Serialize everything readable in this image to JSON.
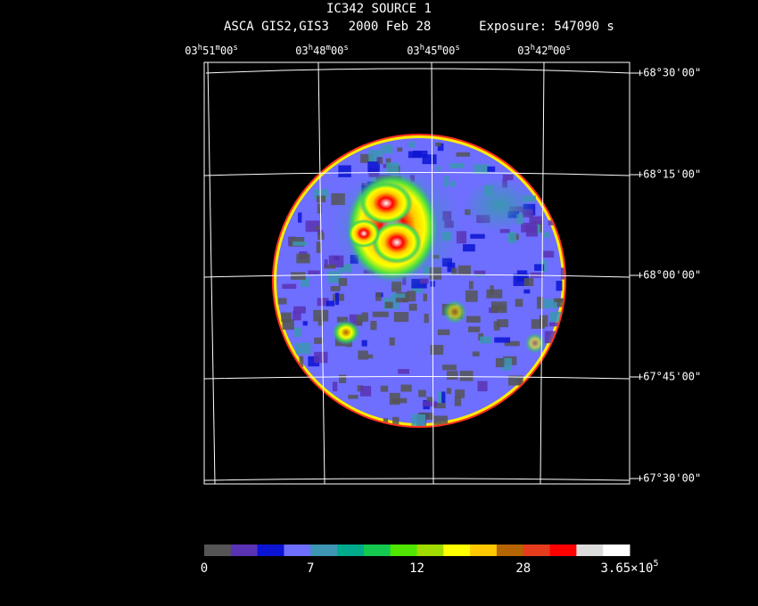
{
  "title": "IC342 SOURCE 1",
  "instrument": "ASCA GIS2,GIS3",
  "date": "2000 Feb 28",
  "exposure": "Exposure: 547090 s",
  "ra_labels": [
    [
      "03",
      "h",
      "51",
      "m",
      "00",
      "s"
    ],
    [
      "03",
      "h",
      "48",
      "m",
      "00",
      "s"
    ],
    [
      "03",
      "h",
      "45",
      "m",
      "00",
      "s"
    ],
    [
      "03",
      "h",
      "42",
      "m",
      "00",
      "s"
    ]
  ],
  "dec_labels": [
    "+68°30'00\"",
    "+68°15'00\"",
    "+68°00'00\"",
    "+67°45'00\"",
    "+67°30'00\""
  ],
  "colorbar": {
    "colors": [
      "#555555",
      "#5a32b4",
      "#0a14d2",
      "#6e6eff",
      "#3c96b4",
      "#00aa8c",
      "#14c850",
      "#50e600",
      "#a0dc00",
      "#ffff00",
      "#ffc800",
      "#b46400",
      "#e63c1e",
      "#ff0000",
      "#dcdcdc",
      "#ffffff"
    ],
    "labels": [
      0,
      7,
      12,
      28,
      [
        "3.65×10",
        "5"
      ]
    ]
  }
}
